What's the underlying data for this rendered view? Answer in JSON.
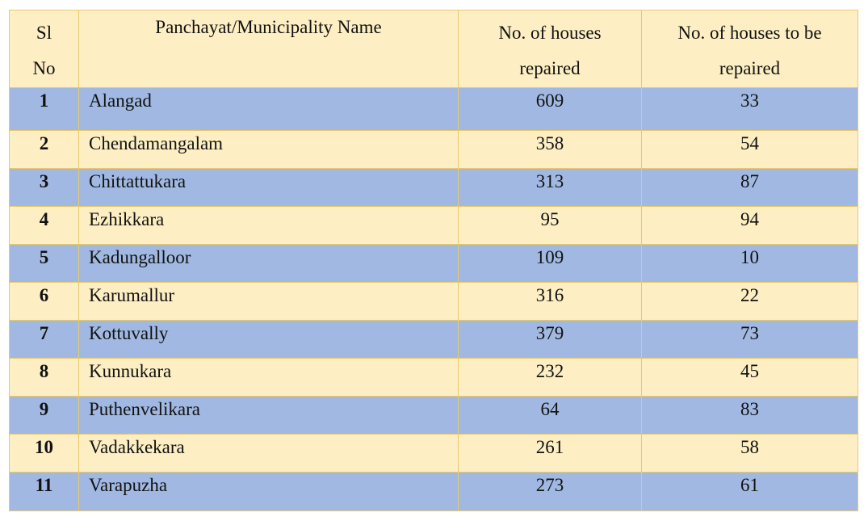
{
  "table": {
    "headers": {
      "sl_line1": "Sl",
      "sl_line2": "No",
      "name": "Panchayat/Municipality Name",
      "repaired_line1": "No. of houses",
      "repaired_line2": "repaired",
      "to_be_line1": "No. of houses to be",
      "to_be_line2": "repaired"
    },
    "rows": [
      {
        "sl": "1",
        "name": "Alangad",
        "repaired": "609",
        "to_be_repaired": "33"
      },
      {
        "sl": "2",
        "name": "Chendamangalam",
        "repaired": "358",
        "to_be_repaired": "54"
      },
      {
        "sl": "3",
        "name": "Chittattukara",
        "repaired": "313",
        "to_be_repaired": "87"
      },
      {
        "sl": "4",
        "name": "Ezhikkara",
        "repaired": "95",
        "to_be_repaired": "94"
      },
      {
        "sl": "5",
        "name": "Kadungalloor",
        "repaired": "109",
        "to_be_repaired": "10"
      },
      {
        "sl": "6",
        "name": "Karumallur",
        "repaired": "316",
        "to_be_repaired": "22"
      },
      {
        "sl": "7",
        "name": "Kottuvally",
        "repaired": "379",
        "to_be_repaired": "73"
      },
      {
        "sl": "8",
        "name": "Kunnukara",
        "repaired": "232",
        "to_be_repaired": "45"
      },
      {
        "sl": "9",
        "name": "Puthenvelikara",
        "repaired": "64",
        "to_be_repaired": "83"
      },
      {
        "sl": "10",
        "name": "Vadakkekara",
        "repaired": "261",
        "to_be_repaired": "58"
      },
      {
        "sl": "11",
        "name": "Varapuzha",
        "repaired": "273",
        "to_be_repaired": "61"
      }
    ]
  },
  "colors": {
    "header_bg": "#fdefc3",
    "row_blue": "#a1b9e2",
    "row_cream": "#fdefc3",
    "border": "#e8c96a"
  }
}
